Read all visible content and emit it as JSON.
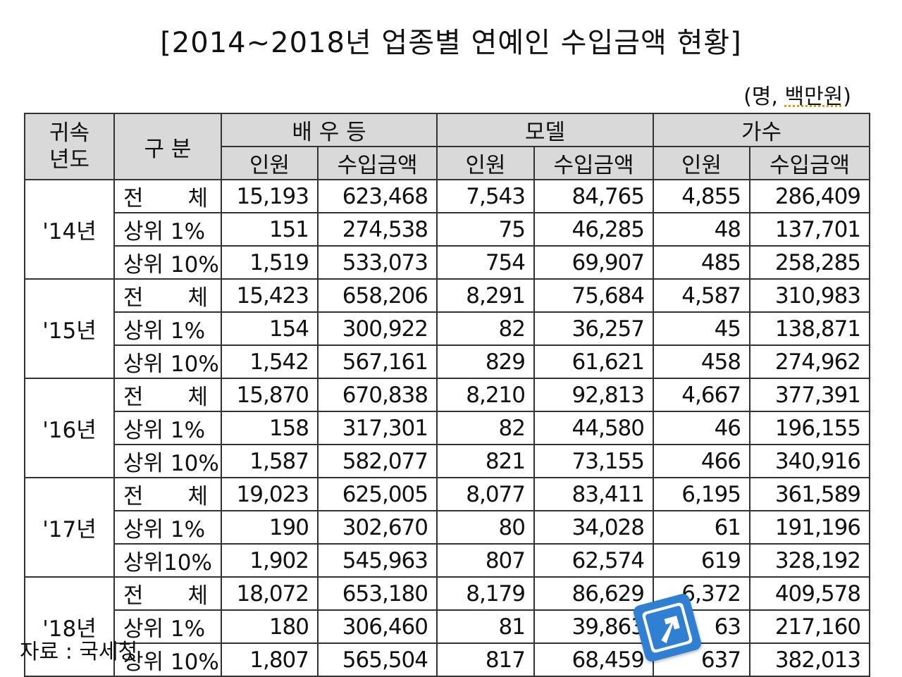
{
  "title": "[2014~2018년 업종별 연예인 수입금액 현황]",
  "unit_prefix": "(명, ",
  "unit_main": "백만원",
  "unit_suffix": ")",
  "table": {
    "hdr_year": "귀속\n년도",
    "hdr_type": "구 분",
    "groups": [
      "배 우 등",
      "모델",
      "가수"
    ],
    "sub": [
      "인원",
      "수입금액",
      "인원",
      "수입금액",
      "인원",
      "수입금액"
    ],
    "years": [
      {
        "label": "'14년",
        "rows": [
          {
            "cat": "전 체",
            "v": [
              "15,193",
              "623,468",
              "7,543",
              "84,765",
              "4,855",
              "286,409"
            ]
          },
          {
            "cat": "상위 1%",
            "v": [
              "151",
              "274,538",
              "75",
              "46,285",
              "48",
              "137,701"
            ]
          },
          {
            "cat": "상위 10%",
            "v": [
              "1,519",
              "533,073",
              "754",
              "69,907",
              "485",
              "258,285"
            ]
          }
        ]
      },
      {
        "label": "'15년",
        "rows": [
          {
            "cat": "전 체",
            "v": [
              "15,423",
              "658,206",
              "8,291",
              "75,684",
              "4,587",
              "310,983"
            ]
          },
          {
            "cat": "상위 1%",
            "v": [
              "154",
              "300,922",
              "82",
              "36,257",
              "45",
              "138,871"
            ]
          },
          {
            "cat": "상위 10%",
            "v": [
              "1,542",
              "567,161",
              "829",
              "61,621",
              "458",
              "274,962"
            ]
          }
        ]
      },
      {
        "label": "'16년",
        "rows": [
          {
            "cat": "전 체",
            "v": [
              "15,870",
              "670,838",
              "8,210",
              "92,813",
              "4,667",
              "377,391"
            ]
          },
          {
            "cat": "상위 1%",
            "v": [
              "158",
              "317,301",
              "82",
              "44,580",
              "46",
              "196,155"
            ]
          },
          {
            "cat": "상위 10%",
            "v": [
              "1,587",
              "582,077",
              "821",
              "73,155",
              "466",
              "340,916"
            ]
          }
        ]
      },
      {
        "label": "'17년",
        "rows": [
          {
            "cat": "전 체",
            "v": [
              "19,023",
              "625,005",
              "8,077",
              "83,411",
              "6,195",
              "361,589"
            ]
          },
          {
            "cat": "상위 1%",
            "v": [
              "190",
              "302,670",
              "80",
              "34,028",
              "61",
              "191,196"
            ]
          },
          {
            "cat": "상위10%",
            "v": [
              "1,902",
              "545,963",
              "807",
              "62,574",
              "619",
              "328,192"
            ]
          }
        ]
      },
      {
        "label": "'18년",
        "rows": [
          {
            "cat": "전 체",
            "v": [
              "18,072",
              "653,180",
              "8,179",
              "86,629",
              "6,372",
              "409,578"
            ]
          },
          {
            "cat": "상위 1%",
            "v": [
              "180",
              "306,460",
              "81",
              "39,863",
              "63",
              "217,160"
            ]
          },
          {
            "cat": "상위 10%",
            "v": [
              "1,807",
              "565,504",
              "817",
              "68,459",
              "637",
              "382,013"
            ]
          }
        ]
      }
    ]
  },
  "source": "자료 : 국세청",
  "icons": {
    "badge": "arrow-up-right-icon",
    "badge_color": "#2f7fd3"
  }
}
